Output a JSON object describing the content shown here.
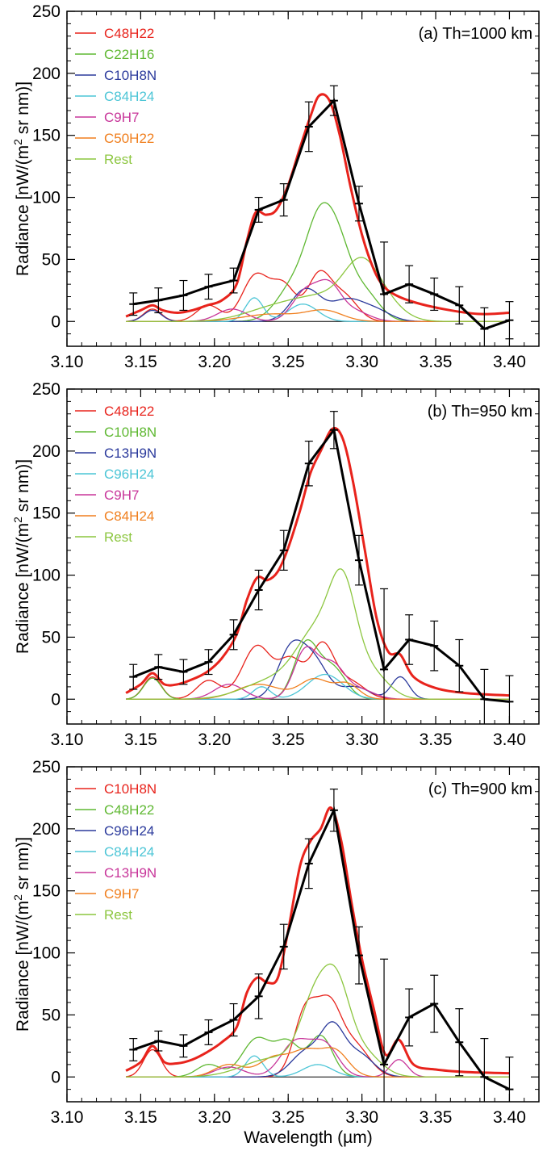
{
  "figure": {
    "xlabel": "Wavelength (µm)",
    "ylabel_prefix": "Radiance [nW/(m",
    "ylabel_sup": "2",
    "ylabel_suffix": " sr nm)]"
  },
  "chart_data": [
    {
      "type": "line",
      "title": "(a) Th=1000 km",
      "xlabel": "",
      "ylabel": "Radiance [nW/(m2 sr nm)]",
      "xlim": [
        3.1,
        3.42
      ],
      "ylim": [
        -20,
        250
      ],
      "xticks": [
        3.1,
        3.15,
        3.2,
        3.25,
        3.3,
        3.35,
        3.4
      ],
      "xtick_labels": [
        "3.10",
        "3.15",
        "3.20",
        "3.25",
        "3.30",
        "3.35",
        "3.40"
      ],
      "yticks": [
        0,
        50,
        100,
        150,
        200,
        250
      ],
      "ytick_labels": [
        "0",
        "50",
        "100",
        "150",
        "200",
        "250"
      ],
      "legend_position": "top-left",
      "legend": [
        {
          "label": "C48H22",
          "color": "#e8231c"
        },
        {
          "label": "C22H16",
          "color": "#5fb832"
        },
        {
          "label": "C10H8N",
          "color": "#2b3a9c"
        },
        {
          "label": "C84H24",
          "color": "#4cc5d6"
        },
        {
          "label": "C9H7",
          "color": "#c8369a"
        },
        {
          "label": "C50H22",
          "color": "#f07f1e"
        },
        {
          "label": "Rest",
          "color": "#8cc63f"
        }
      ],
      "components": [
        {
          "color": "#e8231c",
          "peaks": [
            [
              3.158,
              10,
              0.006
            ],
            [
              3.196,
              13,
              0.008
            ],
            [
              3.228,
              37,
              0.009
            ],
            [
              3.247,
              28,
              0.008
            ],
            [
              3.271,
              37,
              0.008
            ],
            [
              3.288,
              20,
              0.009
            ]
          ]
        },
        {
          "color": "#5fb832",
          "peaks": [
            [
              3.255,
              30,
              0.012
            ],
            [
              3.271,
              62,
              0.009
            ],
            [
              3.284,
              52,
              0.009
            ],
            [
              3.302,
              22,
              0.01
            ]
          ]
        },
        {
          "color": "#2b3a9c",
          "peaks": [
            [
              3.158,
              9,
              0.006
            ],
            [
              3.262,
              26,
              0.01
            ],
            [
              3.29,
              17,
              0.011
            ],
            [
              3.31,
              8,
              0.01
            ]
          ]
        },
        {
          "color": "#4cc5d6",
          "peaks": [
            [
              3.227,
              19,
              0.006
            ],
            [
              3.26,
              14,
              0.01
            ]
          ]
        },
        {
          "color": "#c8369a",
          "peaks": [
            [
              3.212,
              10,
              0.01
            ],
            [
              3.262,
              24,
              0.009
            ],
            [
              3.278,
              26,
              0.008
            ],
            [
              3.295,
              8,
              0.01
            ]
          ]
        },
        {
          "color": "#f07f1e",
          "peaks": [
            [
              3.24,
              6,
              0.02
            ],
            [
              3.275,
              8,
              0.012
            ]
          ]
        },
        {
          "color": "#8cc63f",
          "peaks": [
            [
              3.24,
              10,
              0.02
            ],
            [
              3.275,
              18,
              0.02
            ],
            [
              3.3,
              40,
              0.012
            ],
            [
              3.318,
              10,
              0.012
            ]
          ]
        }
      ],
      "model": {
        "color": "#e8231c",
        "x": [
          3.14,
          3.15,
          3.158,
          3.165,
          3.175,
          3.185,
          3.195,
          3.205,
          3.215,
          3.222,
          3.228,
          3.235,
          3.242,
          3.25,
          3.258,
          3.265,
          3.271,
          3.278,
          3.285,
          3.292,
          3.3,
          3.308,
          3.315,
          3.325,
          3.34,
          3.36,
          3.38,
          3.4
        ],
        "y": [
          4,
          9,
          13,
          9,
          7,
          9,
          13,
          17,
          30,
          65,
          88,
          86,
          90,
          110,
          140,
          165,
          182,
          178,
          150,
          110,
          70,
          42,
          28,
          20,
          14,
          9,
          6,
          7
        ]
      },
      "observed": {
        "color": "#000000",
        "x": [
          3.145,
          3.162,
          3.179,
          3.196,
          3.213,
          3.23,
          3.247,
          3.264,
          3.281,
          3.298,
          3.315,
          3.332,
          3.349,
          3.366,
          3.383,
          3.4
        ],
        "y": [
          14,
          17,
          21,
          28,
          33,
          90,
          98,
          157,
          178,
          95,
          22,
          30,
          22,
          13,
          -6,
          1
        ],
        "err": [
          9,
          10,
          12,
          10,
          10,
          10,
          13,
          20,
          12,
          14,
          42,
          15,
          13,
          15,
          17,
          15
        ]
      }
    },
    {
      "type": "line",
      "title": "(b) Th=950 km",
      "xlabel": "",
      "ylabel": "Radiance [nW/(m2 sr nm)]",
      "xlim": [
        3.1,
        3.42
      ],
      "ylim": [
        -20,
        250
      ],
      "xticks": [
        3.1,
        3.15,
        3.2,
        3.25,
        3.3,
        3.35,
        3.4
      ],
      "xtick_labels": [
        "3.10",
        "3.15",
        "3.20",
        "3.25",
        "3.30",
        "3.35",
        "3.40"
      ],
      "yticks": [
        0,
        50,
        100,
        150,
        200,
        250
      ],
      "ytick_labels": [
        "0",
        "50",
        "100",
        "150",
        "200",
        "250"
      ],
      "legend_position": "top-left",
      "legend": [
        {
          "label": "C48H22",
          "color": "#e8231c"
        },
        {
          "label": "C10H8N",
          "color": "#5fb832"
        },
        {
          "label": "C13H9N",
          "color": "#2b3a9c"
        },
        {
          "label": "C96H24",
          "color": "#4cc5d6"
        },
        {
          "label": "C9H7",
          "color": "#c8369a"
        },
        {
          "label": "C84H24",
          "color": "#f07f1e"
        },
        {
          "label": "Rest",
          "color": "#8cc63f"
        }
      ],
      "components": [
        {
          "color": "#e8231c",
          "peaks": [
            [
              3.158,
              18,
              0.006
            ],
            [
              3.196,
              15,
              0.008
            ],
            [
              3.229,
              43,
              0.01
            ],
            [
              3.252,
              30,
              0.008
            ],
            [
              3.273,
              43,
              0.008
            ],
            [
              3.292,
              14,
              0.01
            ]
          ]
        },
        {
          "color": "#5fb832",
          "peaks": [
            [
              3.158,
              17,
              0.006
            ],
            [
              3.262,
              44,
              0.008
            ],
            [
              3.28,
              25,
              0.009
            ]
          ]
        },
        {
          "color": "#2b3a9c",
          "peaks": [
            [
              3.252,
              40,
              0.009
            ],
            [
              3.268,
              28,
              0.009
            ],
            [
              3.295,
              10,
              0.01
            ],
            [
              3.326,
              18,
              0.006
            ]
          ]
        },
        {
          "color": "#4cc5d6",
          "peaks": [
            [
              3.232,
              10,
              0.006
            ],
            [
              3.275,
              20,
              0.012
            ]
          ]
        },
        {
          "color": "#c8369a",
          "peaks": [
            [
              3.21,
              12,
              0.01
            ],
            [
              3.262,
              40,
              0.008
            ],
            [
              3.28,
              26,
              0.008
            ],
            [
              3.298,
              8,
              0.01
            ]
          ]
        },
        {
          "color": "#f07f1e",
          "peaks": [
            [
              3.23,
              12,
              0.015
            ],
            [
              3.268,
              16,
              0.01
            ],
            [
              3.29,
              12,
              0.008
            ]
          ]
        },
        {
          "color": "#8cc63f",
          "peaks": [
            [
              3.24,
              15,
              0.02
            ],
            [
              3.27,
              50,
              0.014
            ],
            [
              3.287,
              72,
              0.009
            ],
            [
              3.305,
              22,
              0.012
            ]
          ]
        }
      ],
      "model": {
        "color": "#e8231c",
        "x": [
          3.14,
          3.15,
          3.158,
          3.166,
          3.175,
          3.185,
          3.195,
          3.205,
          3.215,
          3.222,
          3.229,
          3.236,
          3.243,
          3.25,
          3.258,
          3.265,
          3.272,
          3.28,
          3.287,
          3.294,
          3.302,
          3.31,
          3.318,
          3.326,
          3.335,
          3.35,
          3.37,
          3.4
        ],
        "y": [
          5,
          12,
          21,
          12,
          12,
          16,
          22,
          33,
          52,
          80,
          98,
          96,
          103,
          122,
          152,
          182,
          200,
          218,
          210,
          175,
          120,
          65,
          38,
          36,
          18,
          9,
          5,
          3
        ]
      },
      "observed": {
        "color": "#000000",
        "x": [
          3.145,
          3.162,
          3.179,
          3.196,
          3.213,
          3.23,
          3.247,
          3.264,
          3.281,
          3.298,
          3.315,
          3.332,
          3.349,
          3.366,
          3.383,
          3.4
        ],
        "y": [
          18,
          26,
          22,
          30,
          52,
          88,
          120,
          190,
          217,
          112,
          24,
          48,
          43,
          27,
          0,
          -2
        ],
        "err": [
          10,
          10,
          10,
          10,
          12,
          16,
          16,
          18,
          15,
          20,
          65,
          20,
          20,
          21,
          24,
          21
        ]
      }
    },
    {
      "type": "line",
      "title": "(c) Th=900 km",
      "xlabel": "Wavelength (µm)",
      "ylabel": "Radiance [nW/(m2 sr nm)]",
      "xlim": [
        3.1,
        3.42
      ],
      "ylim": [
        -20,
        250
      ],
      "xticks": [
        3.1,
        3.15,
        3.2,
        3.25,
        3.3,
        3.35,
        3.4
      ],
      "xtick_labels": [
        "3.10",
        "3.15",
        "3.20",
        "3.25",
        "3.30",
        "3.35",
        "3.40"
      ],
      "yticks": [
        0,
        50,
        100,
        150,
        200,
        250
      ],
      "ytick_labels": [
        "0",
        "50",
        "100",
        "150",
        "200",
        "250"
      ],
      "legend_position": "top-left",
      "legend": [
        {
          "label": "C10H8N",
          "color": "#e8231c"
        },
        {
          "label": "C48H22",
          "color": "#5fb832"
        },
        {
          "label": "C96H24",
          "color": "#2b3a9c"
        },
        {
          "label": "C84H24",
          "color": "#4cc5d6"
        },
        {
          "label": "C13H9N",
          "color": "#c8369a"
        },
        {
          "label": "C9H7",
          "color": "#f07f1e"
        },
        {
          "label": "Rest",
          "color": "#8cc63f"
        }
      ],
      "components": [
        {
          "color": "#e8231c",
          "peaks": [
            [
              3.158,
              22,
              0.006
            ],
            [
              3.262,
              53,
              0.008
            ],
            [
              3.278,
              52,
              0.008
            ],
            [
              3.295,
              25,
              0.01
            ]
          ]
        },
        {
          "color": "#5fb832",
          "peaks": [
            [
              3.196,
              10,
              0.008
            ],
            [
              3.229,
              31,
              0.01
            ],
            [
              3.25,
              26,
              0.008
            ],
            [
              3.272,
              33,
              0.008
            ]
          ]
        },
        {
          "color": "#2b3a9c",
          "peaks": [
            [
              3.262,
              20,
              0.01
            ],
            [
              3.28,
              37,
              0.008
            ],
            [
              3.298,
              18,
              0.01
            ]
          ]
        },
        {
          "color": "#4cc5d6",
          "peaks": [
            [
              3.227,
              17,
              0.006
            ],
            [
              3.27,
              10,
              0.01
            ]
          ]
        },
        {
          "color": "#c8369a",
          "peaks": [
            [
              3.21,
              8,
              0.01
            ],
            [
              3.255,
              28,
              0.01
            ],
            [
              3.275,
              25,
              0.009
            ],
            [
              3.325,
              14,
              0.006
            ]
          ]
        },
        {
          "color": "#f07f1e",
          "peaks": [
            [
              3.21,
              10,
              0.01
            ],
            [
              3.24,
              15,
              0.01
            ],
            [
              3.262,
              20,
              0.01
            ],
            [
              3.282,
              20,
              0.009
            ]
          ]
        },
        {
          "color": "#8cc63f",
          "peaks": [
            [
              3.24,
              15,
              0.02
            ],
            [
              3.268,
              55,
              0.01
            ],
            [
              3.283,
              60,
              0.009
            ],
            [
              3.3,
              20,
              0.012
            ]
          ]
        }
      ],
      "model": {
        "color": "#e8231c",
        "x": [
          3.14,
          3.15,
          3.158,
          3.166,
          3.175,
          3.185,
          3.195,
          3.205,
          3.215,
          3.222,
          3.229,
          3.236,
          3.243,
          3.25,
          3.258,
          3.265,
          3.272,
          3.279,
          3.286,
          3.293,
          3.3,
          3.308,
          3.316,
          3.325,
          3.335,
          3.35,
          3.37,
          3.4
        ],
        "y": [
          5,
          12,
          25,
          12,
          11,
          14,
          20,
          28,
          40,
          68,
          80,
          76,
          80,
          118,
          170,
          190,
          200,
          217,
          190,
          140,
          95,
          55,
          18,
          30,
          10,
          6,
          4,
          3
        ]
      },
      "observed": {
        "color": "#000000",
        "x": [
          3.145,
          3.162,
          3.179,
          3.196,
          3.213,
          3.23,
          3.247,
          3.264,
          3.281,
          3.298,
          3.315,
          3.332,
          3.349,
          3.366,
          3.383,
          3.4
        ],
        "y": [
          22,
          29,
          25,
          36,
          46,
          65,
          105,
          172,
          215,
          98,
          10,
          48,
          59,
          28,
          0,
          -10
        ],
        "err": [
          9,
          8,
          9,
          10,
          13,
          18,
          18,
          20,
          17,
          23,
          85,
          23,
          23,
          27,
          31,
          26
        ]
      }
    }
  ]
}
